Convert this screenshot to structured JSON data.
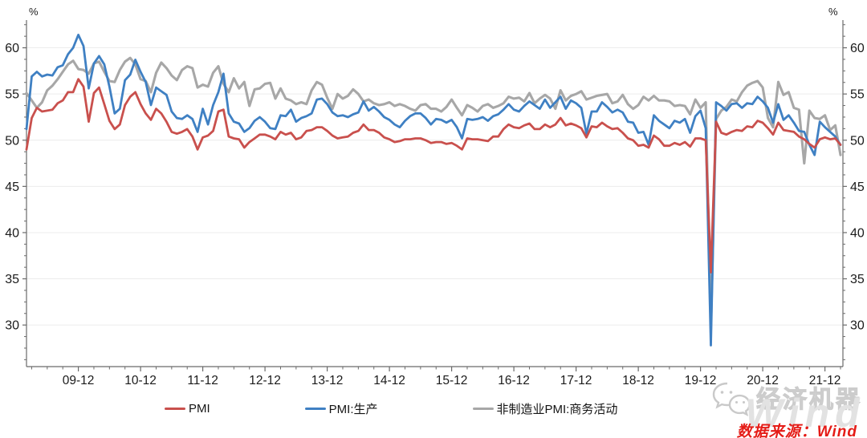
{
  "chart_data": {
    "type": "line",
    "title": "",
    "y_unit_label": "%",
    "ylim": [
      25.5,
      63.0
    ],
    "y_ticks": [
      30,
      35,
      40,
      45,
      50,
      55,
      60
    ],
    "y_minor_step": 1.25,
    "grid": "horizontal",
    "legend_position": "bottom",
    "x_start": "2009-02",
    "x_end": "2022-03",
    "x_tick_labels": [
      "09-12",
      "10-12",
      "11-12",
      "12-12",
      "13-12",
      "14-12",
      "15-12",
      "16-12",
      "17-12",
      "18-12",
      "19-12",
      "20-12",
      "21-12"
    ],
    "x_major_tick_indices": [
      10,
      22,
      34,
      46,
      58,
      70,
      82,
      94,
      106,
      118,
      130,
      142,
      154
    ],
    "x_minor_every_months": 3,
    "series": [
      {
        "name": "PMI",
        "color": "#C9504D",
        "values": [
          49.0,
          52.4,
          53.5,
          53.1,
          53.2,
          53.3,
          54.0,
          54.3,
          55.2,
          55.2,
          56.6,
          55.8,
          52.0,
          55.1,
          55.7,
          53.9,
          52.1,
          51.2,
          51.7,
          53.8,
          54.7,
          55.2,
          53.9,
          52.9,
          52.2,
          53.4,
          52.9,
          52.0,
          50.9,
          50.7,
          50.9,
          51.2,
          50.4,
          49.0,
          50.3,
          50.5,
          51.0,
          53.1,
          53.3,
          50.4,
          50.2,
          50.1,
          49.2,
          49.8,
          50.2,
          50.6,
          50.6,
          50.4,
          50.1,
          50.9,
          50.6,
          50.8,
          50.1,
          50.3,
          51.0,
          51.1,
          51.4,
          51.4,
          51.0,
          50.5,
          50.2,
          50.3,
          50.4,
          50.8,
          51.0,
          51.7,
          51.1,
          51.1,
          50.8,
          50.3,
          50.1,
          49.8,
          49.9,
          50.1,
          50.1,
          50.2,
          50.2,
          50.0,
          49.7,
          49.8,
          49.8,
          49.6,
          49.7,
          49.4,
          49.0,
          50.2,
          50.1,
          50.1,
          50.0,
          49.9,
          50.4,
          50.4,
          51.2,
          51.7,
          51.4,
          51.3,
          51.6,
          51.8,
          51.2,
          51.2,
          51.7,
          51.4,
          51.7,
          52.4,
          51.6,
          51.8,
          51.6,
          51.3,
          50.3,
          51.5,
          51.4,
          51.9,
          51.5,
          51.2,
          51.3,
          50.8,
          50.2,
          50.0,
          49.4,
          49.5,
          49.2,
          50.5,
          50.1,
          49.4,
          49.4,
          49.7,
          49.5,
          49.8,
          49.3,
          50.2,
          50.2,
          50.0,
          35.7,
          52.0,
          50.8,
          50.6,
          50.9,
          51.1,
          51.0,
          51.5,
          51.4,
          52.1,
          51.9,
          51.3,
          50.6,
          51.9,
          51.1,
          51.0,
          50.9,
          50.4,
          50.1,
          49.6,
          49.2,
          50.1,
          50.3,
          50.1,
          50.2,
          49.5
        ]
      },
      {
        "name": "PMI:生产",
        "color": "#3F80C3",
        "values": [
          51.2,
          56.9,
          57.4,
          56.9,
          57.1,
          57.0,
          57.9,
          58.1,
          59.3,
          60.0,
          61.4,
          60.2,
          55.6,
          58.3,
          59.1,
          58.2,
          55.8,
          52.9,
          53.4,
          56.5,
          57.1,
          58.7,
          57.4,
          56.3,
          53.8,
          55.7,
          55.3,
          54.9,
          53.1,
          52.4,
          52.3,
          52.7,
          52.3,
          50.9,
          53.4,
          51.7,
          53.8,
          55.2,
          57.2,
          52.9,
          52.0,
          51.8,
          50.9,
          51.3,
          52.1,
          52.5,
          52.0,
          51.3,
          51.2,
          52.7,
          52.6,
          53.3,
          52.0,
          52.4,
          52.6,
          52.9,
          54.4,
          54.5,
          53.9,
          53.0,
          52.6,
          52.7,
          52.5,
          52.8,
          53.0,
          54.2,
          53.2,
          53.6,
          53.1,
          52.5,
          52.2,
          51.7,
          51.4,
          52.1,
          52.6,
          52.9,
          52.9,
          52.4,
          51.7,
          52.3,
          52.2,
          51.9,
          52.2,
          51.4,
          50.2,
          52.3,
          52.2,
          52.3,
          52.5,
          52.1,
          52.6,
          52.8,
          53.3,
          53.9,
          53.3,
          53.1,
          53.7,
          54.2,
          53.8,
          53.4,
          54.4,
          53.5,
          54.1,
          54.7,
          53.4,
          54.3,
          54.0,
          53.5,
          50.7,
          53.1,
          53.1,
          54.1,
          53.6,
          53.0,
          53.3,
          53.0,
          52.0,
          51.9,
          50.8,
          50.9,
          49.5,
          52.7,
          52.1,
          51.7,
          51.3,
          52.1,
          51.9,
          52.3,
          50.8,
          52.6,
          53.2,
          51.3,
          27.8,
          54.1,
          53.7,
          53.2,
          53.9,
          54.0,
          53.5,
          54.0,
          53.9,
          54.7,
          54.2,
          53.5,
          51.9,
          53.9,
          52.2,
          52.7,
          51.9,
          51.0,
          50.9,
          49.5,
          48.4,
          52.0,
          51.4,
          50.9,
          50.4,
          49.5
        ]
      },
      {
        "name": "非制造业PMI:商务活动",
        "color": "#A7A7A7",
        "values": [
          55.1,
          54.3,
          53.5,
          54.1,
          55.4,
          55.9,
          56.6,
          57.4,
          58.2,
          58.6,
          57.7,
          57.6,
          57.2,
          58.3,
          58.5,
          57.4,
          56.4,
          56.3,
          57.6,
          58.5,
          58.9,
          58.2,
          56.6,
          56.4,
          55.2,
          57.3,
          58.4,
          57.8,
          57.0,
          56.5,
          57.6,
          58.0,
          57.8,
          55.7,
          56.0,
          55.8,
          57.3,
          58.0,
          56.1,
          55.2,
          56.7,
          55.6,
          56.3,
          53.7,
          55.5,
          55.6,
          56.1,
          56.2,
          54.5,
          55.6,
          54.5,
          54.3,
          53.9,
          54.1,
          53.9,
          55.4,
          56.3,
          56.0,
          54.6,
          53.4,
          55.0,
          54.5,
          54.8,
          55.5,
          55.0,
          54.2,
          54.4,
          54.0,
          53.8,
          53.9,
          54.1,
          53.7,
          53.9,
          53.7,
          53.4,
          53.2,
          53.8,
          53.9,
          53.4,
          53.4,
          53.1,
          53.6,
          54.4,
          53.5,
          52.7,
          53.8,
          53.5,
          53.1,
          53.7,
          53.9,
          53.5,
          53.7,
          54.0,
          54.7,
          54.5,
          54.6,
          54.2,
          55.1,
          54.0,
          54.5,
          54.9,
          54.5,
          53.4,
          55.4,
          54.3,
          54.8,
          55.0,
          55.3,
          54.4,
          54.6,
          54.8,
          54.9,
          55.0,
          54.0,
          54.2,
          54.9,
          53.9,
          53.4,
          53.8,
          54.7,
          54.3,
          54.8,
          54.3,
          54.3,
          54.2,
          53.7,
          53.8,
          53.7,
          52.8,
          54.4,
          53.5,
          54.1,
          29.6,
          52.3,
          53.2,
          53.6,
          54.4,
          54.2,
          55.2,
          55.9,
          56.2,
          56.4,
          55.7,
          52.4,
          51.4,
          56.3,
          54.9,
          55.2,
          53.5,
          53.3,
          47.5,
          53.2,
          52.4,
          52.3,
          52.7,
          51.1,
          51.6,
          48.4
        ]
      }
    ],
    "style": {
      "grid_color": "#ECECEC",
      "axis_color": "#6A6A6A",
      "tick_label_color": "#1B1B1B",
      "line_width": 2.8
    }
  },
  "footer": {
    "source": "数据来源：Wind"
  },
  "watermark": {
    "brand_text": "经济机器",
    "wind_text": "Wind"
  }
}
